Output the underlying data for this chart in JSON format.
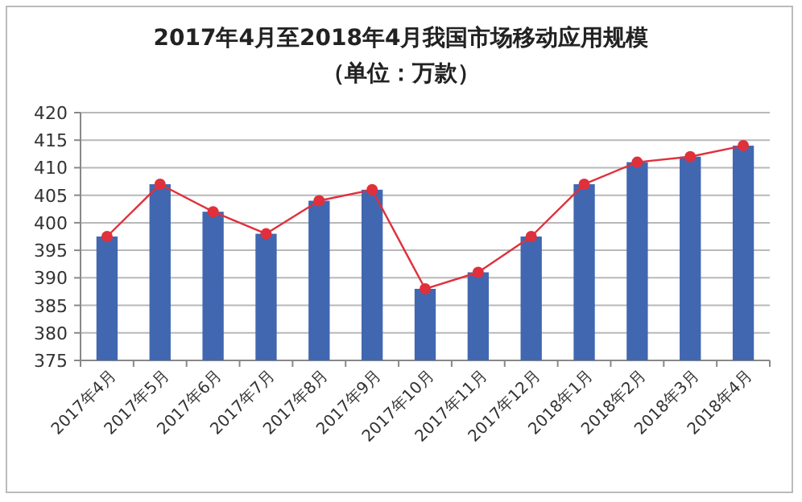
{
  "chart_data": {
    "type": "bar",
    "title": "2017年4月至2018年4月我国市场移动应用规模",
    "subtitle": "（单位：万款）",
    "categories": [
      "2017年4月",
      "2017年5月",
      "2017年6月",
      "2017年7月",
      "2017年8月",
      "2017年9月",
      "2017年10月",
      "2017年11月",
      "2017年12月",
      "2018年1月",
      "2018年2月",
      "2018年3月",
      "2018年4月"
    ],
    "series": [
      {
        "color": "#4167b0",
        "values": [
          397.5,
          407,
          402,
          398,
          404,
          406,
          388,
          391,
          397.5,
          407,
          411,
          412,
          414
        ]
      },
      {
        "type": "line",
        "color": "#e0303c",
        "values": [
          397.5,
          407,
          402,
          398,
          404,
          406,
          388,
          391,
          397.5,
          407,
          411,
          412,
          414
        ]
      }
    ],
    "ylim": [
      375,
      420
    ],
    "yticks": [
      375,
      380,
      385,
      390,
      395,
      400,
      405,
      410,
      415,
      420
    ],
    "grid": "y",
    "marker": "circle"
  }
}
